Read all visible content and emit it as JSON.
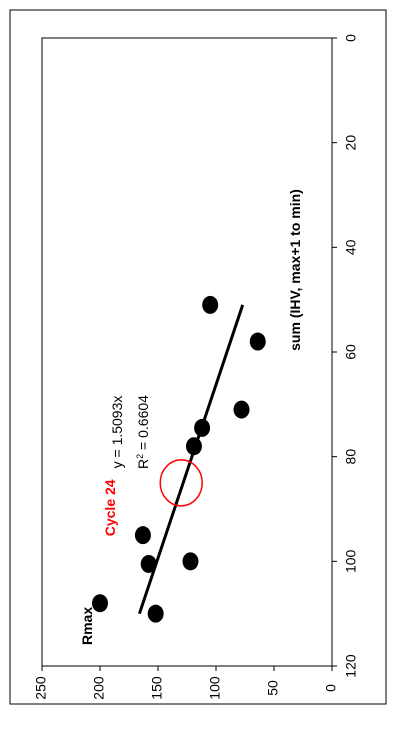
{
  "chart_data": {
    "type": "scatter",
    "orientation": "rotated-90-clockwise",
    "xlabel": "sum (IHV, max+1 to min)",
    "ylabel": "Rmax",
    "xlim": [
      0,
      120
    ],
    "ylim": [
      0,
      250
    ],
    "x_ticks": [
      "0",
      "20",
      "40",
      "60",
      "80",
      "100",
      "120"
    ],
    "y_ticks": [
      "0",
      "50",
      "100",
      "150",
      "200",
      "250"
    ],
    "series": [
      {
        "points": [
          {
            "x": 108,
            "y": 200
          },
          {
            "x": 110,
            "y": 152
          },
          {
            "x": 100.5,
            "y": 158
          },
          {
            "x": 100,
            "y": 122
          },
          {
            "x": 95,
            "y": 163
          },
          {
            "x": 78,
            "y": 119
          },
          {
            "x": 74.5,
            "y": 112
          },
          {
            "x": 71,
            "y": 78
          },
          {
            "x": 58,
            "y": 64
          },
          {
            "x": 51,
            "y": 105
          }
        ],
        "color": "#000000"
      }
    ],
    "fit": {
      "equation": "y = 1.5093x",
      "r2_text": "R",
      "r2_sup": "2",
      "r2_value": " = 0.6604",
      "slope": 1.5093,
      "x_range": [
        51,
        110
      ],
      "color": "#000000"
    },
    "annotation": {
      "text": "Cycle 24",
      "color": "#ff0000",
      "x": 85,
      "y": 130
    }
  }
}
